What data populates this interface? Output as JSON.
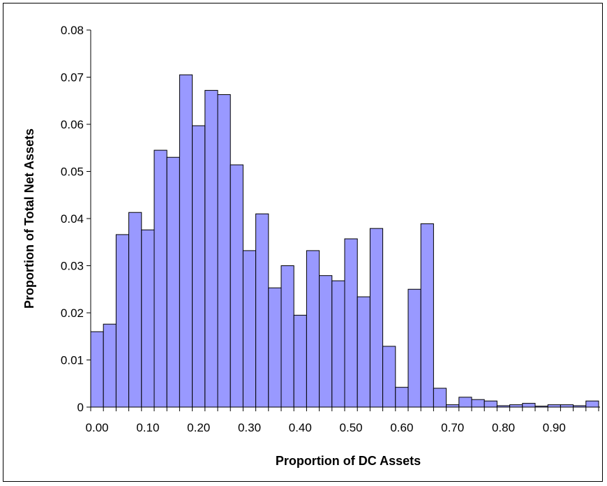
{
  "chart_data": {
    "type": "bar",
    "title": "",
    "xlabel": "Proportion of DC Assets",
    "ylabel": "Proportion of Total Net Assets",
    "ylim": [
      0,
      0.08
    ],
    "yticks": [
      "0",
      "0.01",
      "0.02",
      "0.03",
      "0.04",
      "0.05",
      "0.06",
      "0.07",
      "0.08"
    ],
    "xticks": [
      "0.00",
      "0.10",
      "0.20",
      "0.30",
      "0.40",
      "0.50",
      "0.60",
      "0.70",
      "0.80",
      "0.90"
    ],
    "bin_width": 0.025,
    "x_start": -0.0125,
    "grid": false,
    "legend": "none",
    "bar_color": "#9999ff",
    "bar_edge_color": "#000000",
    "values": [
      0.016,
      0.0176,
      0.0366,
      0.0413,
      0.0376,
      0.0545,
      0.053,
      0.0705,
      0.0597,
      0.0672,
      0.0663,
      0.0514,
      0.0332,
      0.041,
      0.0253,
      0.03,
      0.0195,
      0.0332,
      0.0279,
      0.0268,
      0.0357,
      0.0234,
      0.0379,
      0.0129,
      0.0042,
      0.025,
      0.0389,
      0.004,
      0.0005,
      0.0021,
      0.0016,
      0.0013,
      0.0003,
      0.0005,
      0.0008,
      0.0002,
      0.0005,
      0.0005,
      0.0003,
      0.0013
    ]
  }
}
